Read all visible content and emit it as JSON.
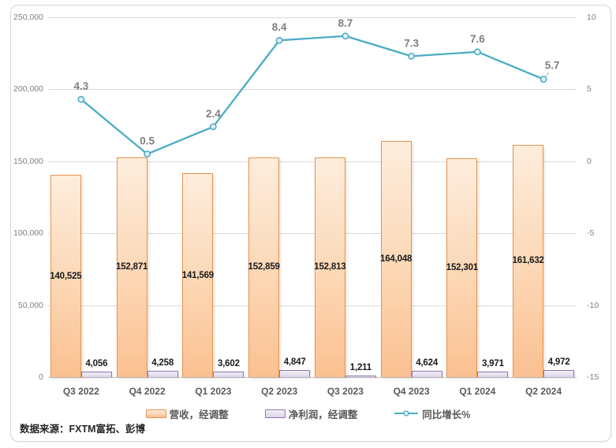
{
  "source_note": "数据来源：FXTM富拓、彭博",
  "colors": {
    "grid": "#D9D9D9",
    "axis_line": "#BFBFBF",
    "tick_label": "#808080",
    "bar_label": "#1A1A1A",
    "x_label": "#595959",
    "legend_label": "#595959",
    "revenue_fill_top": "#FDEDDD",
    "revenue_fill_bottom": "#FBC091",
    "revenue_border": "#E8914C",
    "profit_fill_top": "#F3EFF8",
    "profit_fill_bottom": "#DDD3E9",
    "profit_border": "#8C76AC",
    "growth_line": "#4BACC6",
    "growth_label": "#7F7F7F"
  },
  "chart_data": {
    "type": "combo",
    "categories": [
      "Q3 2022",
      "Q4 2022",
      "Q1 2023",
      "Q2 2023",
      "Q3 2023",
      "Q4 2023",
      "Q1 2024",
      "Q2 2024"
    ],
    "series": [
      {
        "name": "营收，经调整",
        "type": "bar",
        "axis": "left",
        "values": [
          140525,
          152871,
          141569,
          152859,
          152813,
          164048,
          152301,
          161632
        ],
        "labels": [
          "140,525",
          "152,871",
          "141,569",
          "152,859",
          "152,813",
          "164,048",
          "152,301",
          "161,632"
        ]
      },
      {
        "name": "净利润，经调整",
        "type": "bar",
        "axis": "left",
        "values": [
          4056,
          4258,
          3602,
          4847,
          1211,
          4624,
          3971,
          4972
        ],
        "labels": [
          "4,056",
          "4,258",
          "3,602",
          "4,847",
          "1,211",
          "4,624",
          "3,971",
          "4,972"
        ]
      },
      {
        "name": "同比增长%",
        "type": "line",
        "axis": "right",
        "values": [
          4.3,
          0.5,
          2.4,
          8.4,
          8.7,
          7.3,
          7.6,
          5.7
        ],
        "labels": [
          "4.3",
          "0.5",
          "2.4",
          "8.4",
          "8.7",
          "7.3",
          "7.6",
          "5.7"
        ]
      }
    ],
    "left_axis": {
      "min": 0,
      "max": 250000,
      "step": 50000,
      "tick_labels": [
        "0",
        "50,000",
        "100,000",
        "150,000",
        "200,000",
        "250,000"
      ]
    },
    "right_axis": {
      "min": -15,
      "max": 10,
      "step": 5,
      "tick_labels": [
        "-15",
        "-10",
        "-5",
        "0",
        "5",
        "10"
      ]
    },
    "grid": true,
    "legend_position": "bottom",
    "title": "",
    "xlabel": "",
    "ylabel": ""
  }
}
